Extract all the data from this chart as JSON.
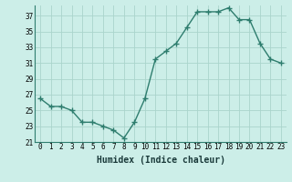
{
  "x": [
    0,
    1,
    2,
    3,
    4,
    5,
    6,
    7,
    8,
    9,
    10,
    11,
    12,
    13,
    14,
    15,
    16,
    17,
    18,
    19,
    20,
    21,
    22,
    23
  ],
  "y": [
    26.5,
    25.5,
    25.5,
    25,
    23.5,
    23.5,
    23,
    22.5,
    21.5,
    23.5,
    26.5,
    31.5,
    32.5,
    33.5,
    35.5,
    37.5,
    37.5,
    37.5,
    38,
    36.5,
    36.5,
    33.5,
    31.5,
    31
  ],
  "xlabel": "Humidex (Indice chaleur)",
  "ylim": [
    21,
    38
  ],
  "yticks": [
    21,
    23,
    25,
    27,
    29,
    31,
    33,
    35,
    37
  ],
  "xticks": [
    0,
    1,
    2,
    3,
    4,
    5,
    6,
    7,
    8,
    9,
    10,
    11,
    12,
    13,
    14,
    15,
    16,
    17,
    18,
    19,
    20,
    21,
    22,
    23
  ],
  "line_color": "#2e7d6e",
  "marker": "+",
  "marker_size": 4,
  "marker_lw": 1.0,
  "bg_color": "#cceee8",
  "grid_color": "#aad4cc",
  "line_width": 1.0,
  "tick_fontsize": 5.5,
  "xlabel_fontsize": 7.0
}
